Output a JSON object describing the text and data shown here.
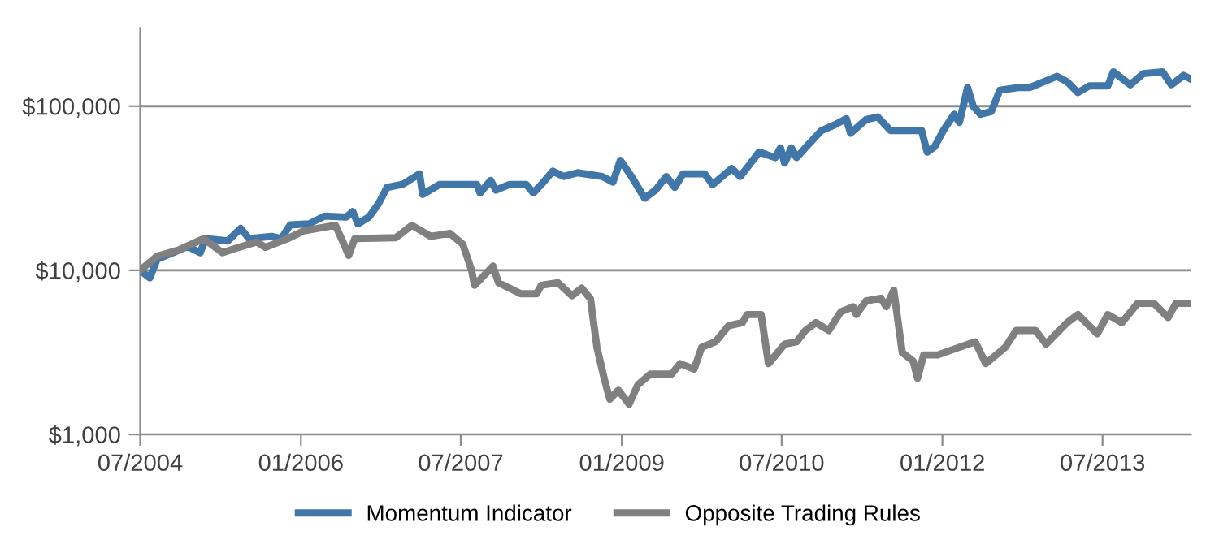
{
  "chart_data": {
    "type": "line",
    "xlim": [
      "2004-07-01",
      "2014-04-29"
    ],
    "xticks": [
      {
        "value": "2004-07-01",
        "label": "07/2004"
      },
      {
        "value": "2006-01-01",
        "label": "01/2006"
      },
      {
        "value": "2007-07-01",
        "label": "07/2007"
      },
      {
        "value": "2009-01-01",
        "label": "01/2009"
      },
      {
        "value": "2010-07-01",
        "label": "07/2010"
      },
      {
        "value": "2012-01-01",
        "label": "01/2012"
      },
      {
        "value": "2013-07-01",
        "label": "07/2013"
      }
    ],
    "ylim": [
      1000,
      300000
    ],
    "yticks": [
      {
        "value": 1000,
        "label": "$1,000"
      },
      {
        "value": 10000,
        "label": "$10,000"
      },
      {
        "value": 100000,
        "label": "$100,000"
      }
    ],
    "log": "y",
    "grid": "y",
    "legend": "bottom",
    "line_style": "solid",
    "series": [
      {
        "name": "Momentum Indicator",
        "color": "#4177a8",
        "x": [
          "2004-07-01",
          "2004-08-03",
          "2004-08-28",
          "2004-10-22",
          "2004-12-09",
          "2005-01-22",
          "2005-02-10",
          "2005-04-26",
          "2005-06-09",
          "2005-07-08",
          "2005-09-23",
          "2005-10-26",
          "2005-11-25",
          "2006-01-29",
          "2006-03-23",
          "2006-06-05",
          "2006-06-27",
          "2006-07-15",
          "2006-08-21",
          "2006-09-23",
          "2006-10-22",
          "2006-12-16",
          "2007-02-10",
          "2007-02-21",
          "2007-04-19",
          "2007-08-25",
          "2007-09-05",
          "2007-10-11",
          "2007-10-29",
          "2007-12-13",
          "2008-02-10",
          "2008-03-05",
          "2008-04-01",
          "2008-05-10",
          "2008-06-16",
          "2008-08-03",
          "2008-10-26",
          "2008-12-02",
          "2008-12-27",
          "2009-02-03",
          "2009-03-20",
          "2009-04-26",
          "2009-06-02",
          "2009-07-01",
          "2009-07-29",
          "2009-10-11",
          "2009-11-07",
          "2010-01-11",
          "2010-02-10",
          "2010-04-15",
          "2010-06-09",
          "2010-06-27",
          "2010-07-11",
          "2010-08-03",
          "2010-08-21",
          "2010-09-27",
          "2010-11-14",
          "2010-12-27",
          "2011-02-07",
          "2011-02-21",
          "2011-04-15",
          "2011-05-25",
          "2011-07-08",
          "2011-10-22",
          "2011-11-10",
          "2011-12-05",
          "2012-01-04",
          "2012-02-10",
          "2012-02-28",
          "2012-03-27",
          "2012-04-15",
          "2012-05-10",
          "2012-06-16",
          "2012-07-15",
          "2012-09-20",
          "2012-10-26",
          "2013-01-26",
          "2013-03-02",
          "2013-04-08",
          "2013-05-17",
          "2013-07-19",
          "2013-08-07",
          "2013-10-04",
          "2013-11-17",
          "2014-01-22",
          "2014-02-21",
          "2014-04-04",
          "2014-04-29"
        ],
        "values": [
          10000,
          9000,
          11700,
          12800,
          14000,
          12800,
          15600,
          15100,
          18000,
          15600,
          16100,
          15600,
          18900,
          19200,
          21400,
          21100,
          22800,
          19200,
          21100,
          25400,
          32000,
          33500,
          38700,
          29000,
          33300,
          33300,
          29600,
          35300,
          30800,
          33300,
          33300,
          29600,
          33300,
          40200,
          37300,
          39300,
          37300,
          34500,
          46800,
          37300,
          27500,
          30800,
          37300,
          32000,
          38700,
          38700,
          33300,
          41700,
          37300,
          52500,
          48600,
          55700,
          45000,
          55700,
          48600,
          57500,
          71000,
          76600,
          83900,
          68400,
          82700,
          86000,
          71000,
          71000,
          52500,
          56500,
          71000,
          89200,
          79600,
          130000,
          100000,
          89200,
          92700,
          125000,
          130000,
          130000,
          152000,
          141000,
          121000,
          133000,
          133000,
          162000,
          135000,
          158000,
          162000,
          135000,
          154000,
          146000
        ]
      },
      {
        "name": "Opposite Trading Rules",
        "color": "#808080",
        "x": [
          "2004-07-01",
          "2004-08-28",
          "2004-11-10",
          "2005-02-03",
          "2005-04-08",
          "2005-06-02",
          "2005-08-03",
          "2005-09-02",
          "2005-11-17",
          "2006-01-11",
          "2006-04-29",
          "2006-05-28",
          "2006-06-13",
          "2006-07-04",
          "2006-11-21",
          "2007-01-15",
          "2007-03-20",
          "2007-05-25",
          "2007-07-08",
          "2007-08-07",
          "2007-08-17",
          "2007-09-13",
          "2007-10-19",
          "2007-11-07",
          "2008-01-22",
          "2008-03-16",
          "2008-04-01",
          "2008-05-28",
          "2008-07-15",
          "2008-08-17",
          "2008-09-16",
          "2008-10-08",
          "2008-11-03",
          "2008-11-21",
          "2008-12-20",
          "2009-01-26",
          "2009-02-25",
          "2009-04-08",
          "2009-06-20",
          "2009-07-19",
          "2009-09-05",
          "2009-10-01",
          "2009-11-17",
          "2010-01-01",
          "2010-02-17",
          "2010-03-05",
          "2010-04-22",
          "2010-05-17",
          "2010-07-11",
          "2010-08-21",
          "2010-09-20",
          "2010-10-26",
          "2010-12-09",
          "2011-01-19",
          "2011-03-02",
          "2011-03-13",
          "2011-04-15",
          "2011-06-05",
          "2011-06-23",
          "2011-07-19",
          "2011-08-17",
          "2011-09-23",
          "2011-10-08",
          "2011-10-29",
          "2011-12-16",
          "2012-02-28",
          "2012-04-22",
          "2012-05-28",
          "2012-08-03",
          "2012-09-09",
          "2012-11-14",
          "2012-12-20",
          "2013-03-02",
          "2013-04-08",
          "2013-06-13",
          "2013-07-19",
          "2013-09-05",
          "2013-10-29",
          "2013-12-23",
          "2014-02-10",
          "2014-03-09",
          "2014-04-29"
        ],
        "values": [
          10000,
          12200,
          13300,
          15600,
          12800,
          13800,
          14900,
          13800,
          15600,
          17400,
          18800,
          14400,
          12300,
          15600,
          15800,
          18800,
          16100,
          16800,
          14400,
          10000,
          8100,
          9100,
          10600,
          8400,
          7200,
          7200,
          8100,
          8400,
          7000,
          7800,
          6700,
          3400,
          2150,
          1640,
          1860,
          1530,
          2010,
          2330,
          2330,
          2700,
          2500,
          3400,
          3670,
          4600,
          4800,
          5380,
          5380,
          2700,
          3550,
          3670,
          4300,
          4800,
          4300,
          5580,
          6000,
          5380,
          6500,
          6760,
          6000,
          7570,
          3150,
          2800,
          2200,
          3050,
          3050,
          3400,
          3670,
          2700,
          3400,
          4300,
          4300,
          3550,
          4800,
          5380,
          4100,
          5380,
          4800,
          6300,
          6300,
          5150,
          6300,
          6300
        ]
      }
    ]
  }
}
